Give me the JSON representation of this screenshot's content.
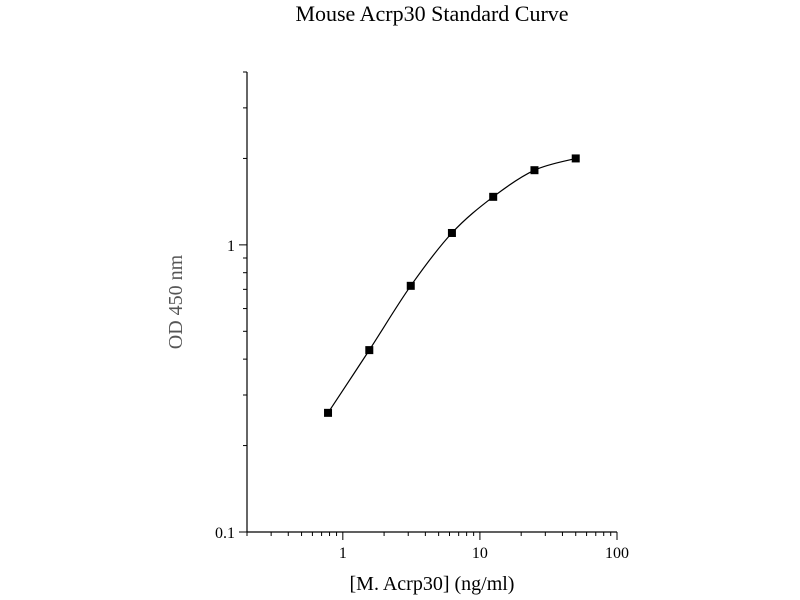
{
  "chart_data": {
    "type": "scatter",
    "title": "Mouse Acrp30 Standard Curve",
    "xlabel": "[M. Acrp30] (ng/ml)",
    "ylabel": "OD 450 nm",
    "xscale": "log",
    "yscale": "log",
    "xlim": [
      0.2,
      100
    ],
    "ylim": [
      0.1,
      4
    ],
    "x_ticks": [
      1,
      10,
      100
    ],
    "x_tick_labels": [
      "1",
      "10",
      "100"
    ],
    "y_ticks": [
      0.1,
      1
    ],
    "y_tick_labels": [
      "0.1",
      "1"
    ],
    "grid": false,
    "legend": "none",
    "fit_curve": true,
    "colors": {
      "line": "#000000",
      "marker": "#000000",
      "axis_label": "#555555",
      "title": "#000000"
    },
    "series": [
      {
        "x": [
          0.78,
          1.56,
          3.13,
          6.25,
          12.5,
          25,
          50
        ],
        "y": [
          0.26,
          0.43,
          0.72,
          1.1,
          1.47,
          1.82,
          2.0
        ]
      }
    ]
  }
}
